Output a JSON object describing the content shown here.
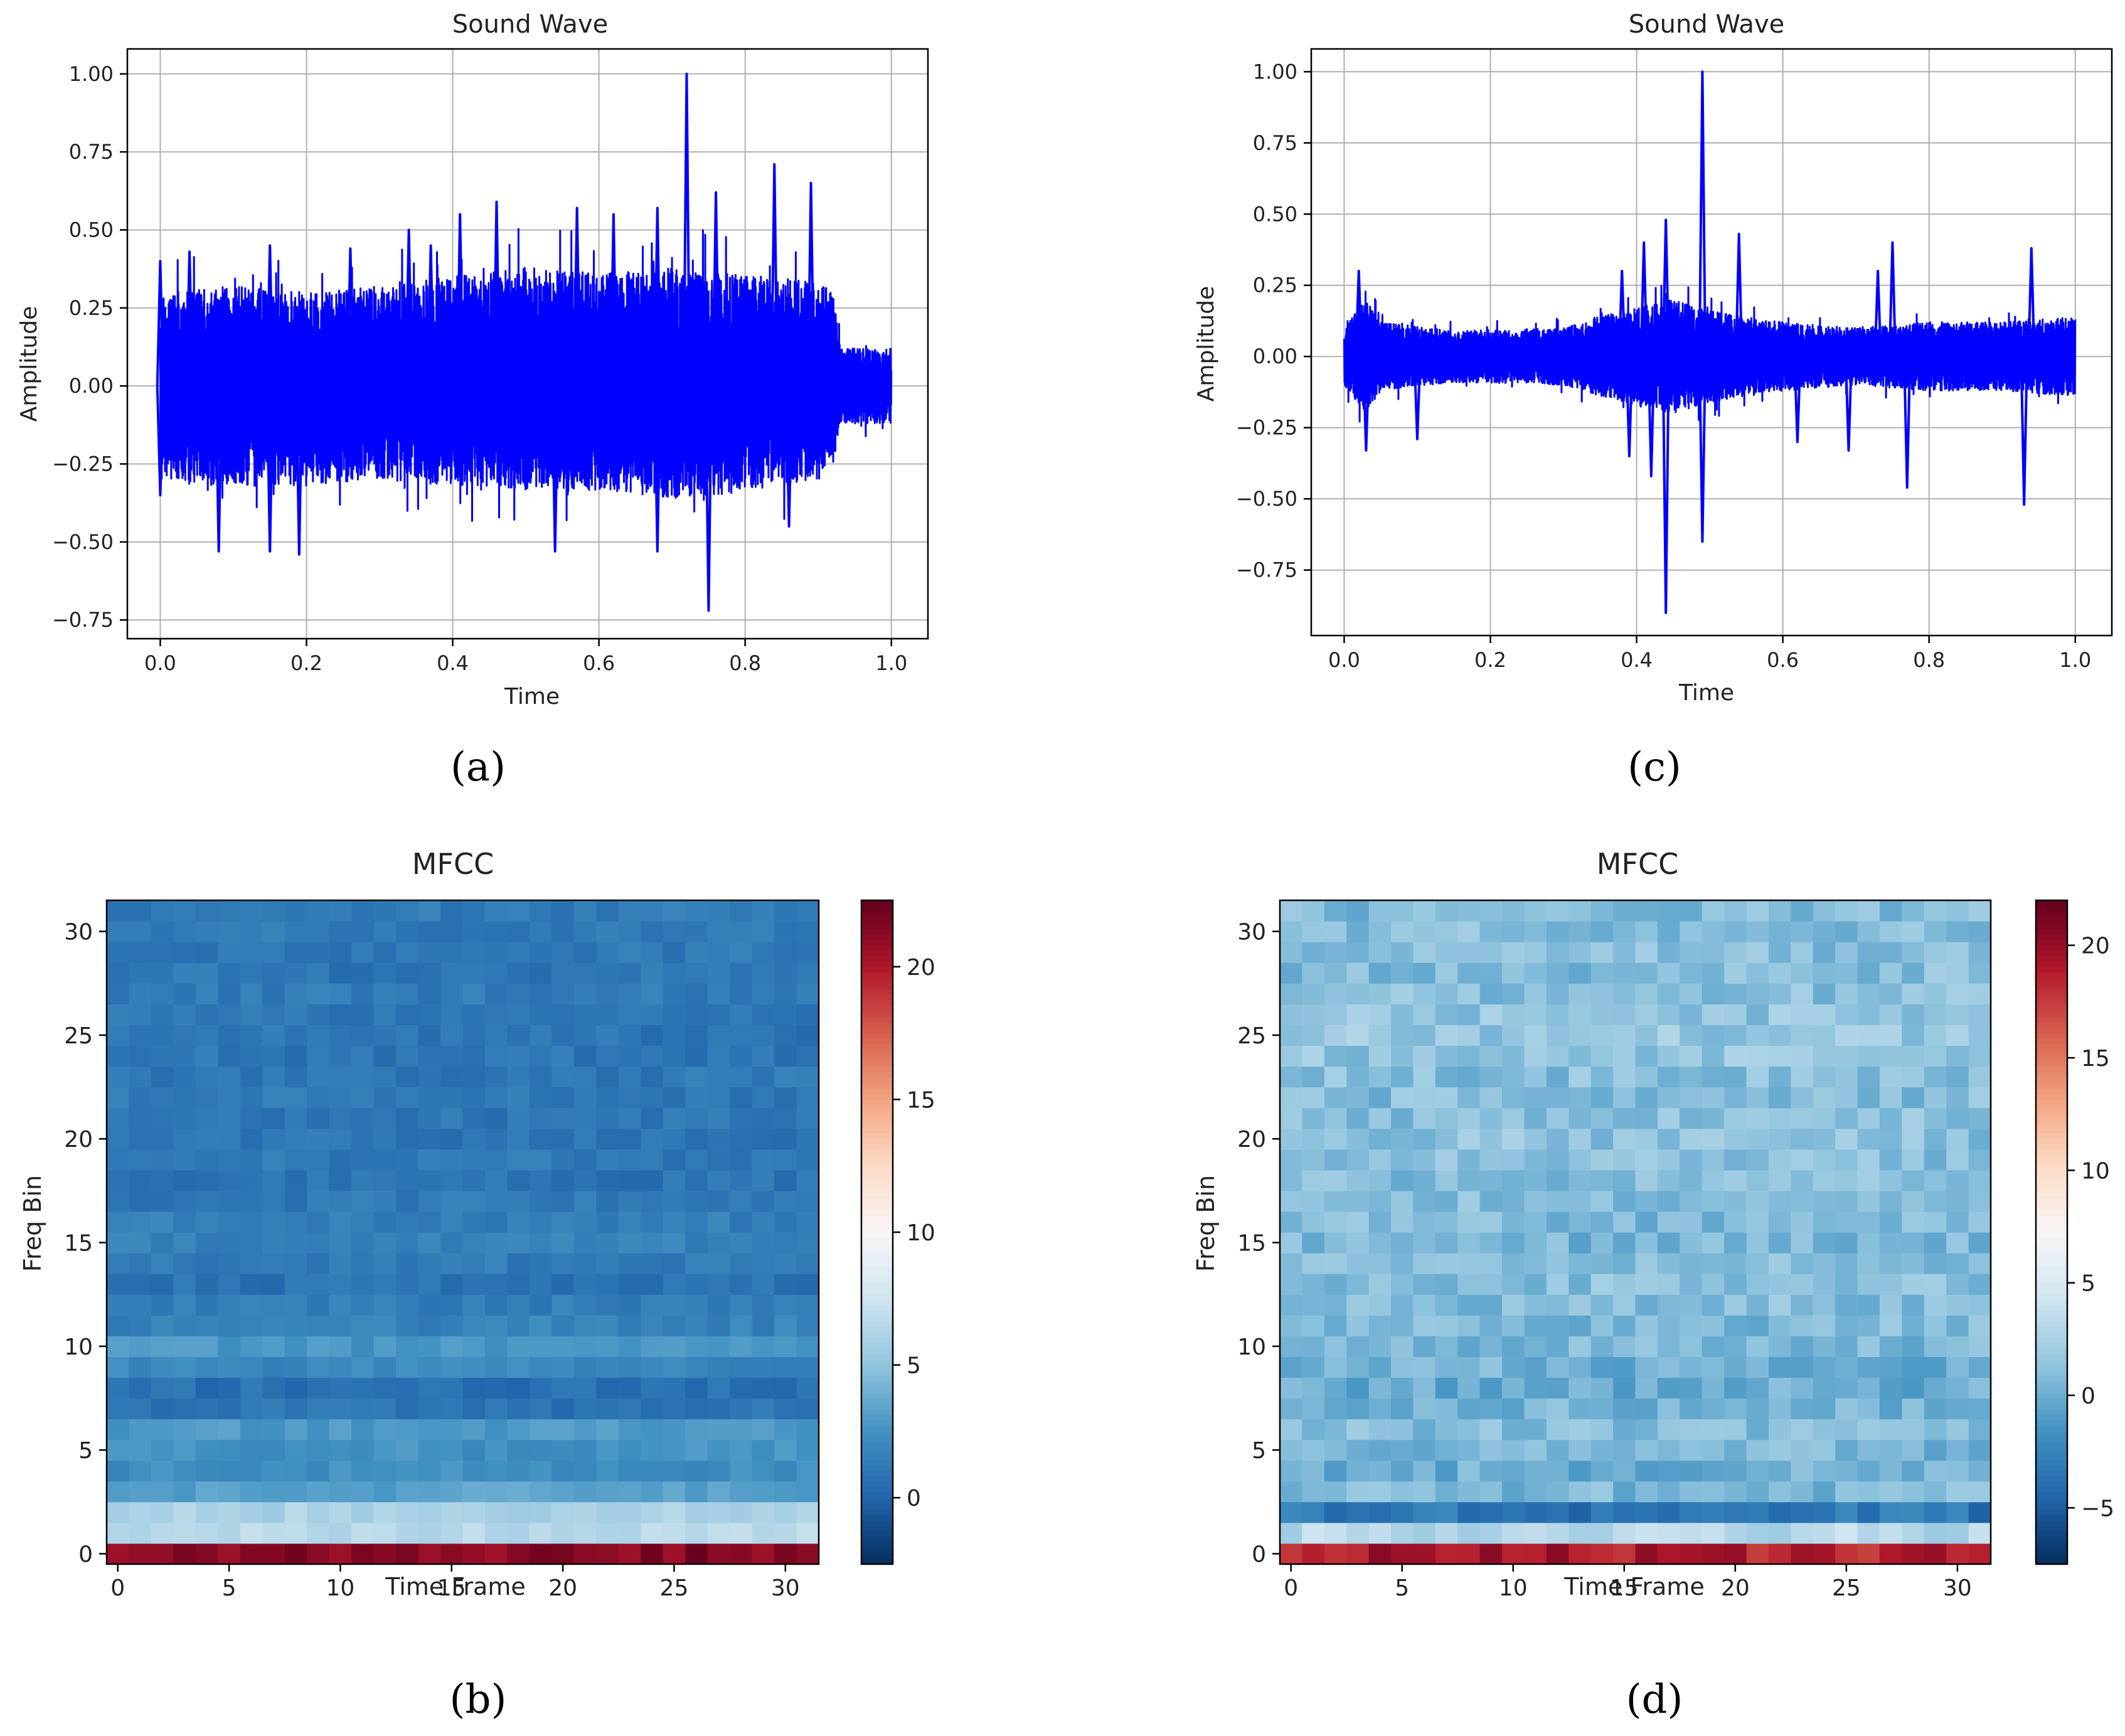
{
  "chart_data": [
    {
      "id": "a",
      "type": "line",
      "title": "Sound Wave",
      "xlabel": "Time",
      "ylabel": "Amplitude",
      "xlim": [
        -0.045,
        1.05
      ],
      "ylim": [
        -0.81,
        1.08
      ],
      "xticks": [
        0.0,
        0.2,
        0.4,
        0.6,
        0.8,
        1.0
      ],
      "xtick_labels": [
        "0.0",
        "0.2",
        "0.4",
        "0.6",
        "0.8",
        "1.0"
      ],
      "yticks": [
        -0.75,
        -0.5,
        -0.25,
        0.0,
        0.25,
        0.5,
        0.75,
        1.0
      ],
      "ytick_labels": [
        "−0.75",
        "−0.50",
        "−0.25",
        "0.00",
        "0.25",
        "0.50",
        "0.75",
        "1.00"
      ],
      "grid": true,
      "series": [
        {
          "name": "waveform",
          "color": "#0000ff",
          "envelope": {
            "x": [
              0.0,
              0.1,
              0.2,
              0.3,
              0.4,
              0.5,
              0.6,
              0.7,
              0.8,
              0.9,
              0.92,
              0.93,
              1.0
            ],
            "upper": [
              0.3,
              0.32,
              0.3,
              0.32,
              0.35,
              0.38,
              0.36,
              0.38,
              0.36,
              0.33,
              0.3,
              0.12,
              0.12
            ],
            "lower": [
              -0.3,
              -0.32,
              -0.32,
              -0.3,
              -0.32,
              -0.34,
              -0.34,
              -0.36,
              -0.34,
              -0.3,
              -0.26,
              -0.12,
              -0.12
            ]
          },
          "peaks": [
            {
              "x": 0.0,
              "y": 0.4
            },
            {
              "x": 0.0,
              "y": -0.35
            },
            {
              "x": 0.04,
              "y": 0.43
            },
            {
              "x": 0.08,
              "y": -0.53
            },
            {
              "x": 0.15,
              "y": 0.45
            },
            {
              "x": 0.15,
              "y": -0.53
            },
            {
              "x": 0.19,
              "y": -0.54
            },
            {
              "x": 0.26,
              "y": 0.44
            },
            {
              "x": 0.34,
              "y": 0.5
            },
            {
              "x": 0.37,
              "y": 0.45
            },
            {
              "x": 0.41,
              "y": 0.55
            },
            {
              "x": 0.46,
              "y": 0.59
            },
            {
              "x": 0.54,
              "y": -0.53
            },
            {
              "x": 0.57,
              "y": 0.57
            },
            {
              "x": 0.62,
              "y": 0.55
            },
            {
              "x": 0.68,
              "y": 0.57
            },
            {
              "x": 0.68,
              "y": -0.53
            },
            {
              "x": 0.72,
              "y": 1.0
            },
            {
              "x": 0.75,
              "y": -0.72
            },
            {
              "x": 0.76,
              "y": 0.62
            },
            {
              "x": 0.84,
              "y": 0.71
            },
            {
              "x": 0.89,
              "y": 0.65
            },
            {
              "x": 0.86,
              "y": -0.45
            }
          ]
        }
      ]
    },
    {
      "id": "c",
      "type": "line",
      "title": "Sound Wave",
      "xlabel": "Time",
      "ylabel": "Amplitude",
      "xlim": [
        -0.045,
        1.05
      ],
      "ylim": [
        -0.98,
        1.08
      ],
      "xticks": [
        0.0,
        0.2,
        0.4,
        0.6,
        0.8,
        1.0
      ],
      "xtick_labels": [
        "0.0",
        "0.2",
        "0.4",
        "0.6",
        "0.8",
        "1.0"
      ],
      "yticks": [
        -0.75,
        -0.5,
        -0.25,
        0.0,
        0.25,
        0.5,
        0.75,
        1.0
      ],
      "ytick_labels": [
        "−0.75",
        "−0.50",
        "−0.25",
        "0.00",
        "0.25",
        "0.50",
        "0.75",
        "1.00"
      ],
      "grid": true,
      "series": [
        {
          "name": "waveform",
          "color": "#0000ff",
          "envelope": {
            "x": [
              0.0,
              0.03,
              0.05,
              0.15,
              0.3,
              0.35,
              0.45,
              0.5,
              0.6,
              0.7,
              0.8,
              0.9,
              1.0
            ],
            "upper": [
              0.1,
              0.2,
              0.12,
              0.09,
              0.1,
              0.14,
              0.2,
              0.16,
              0.12,
              0.1,
              0.12,
              0.12,
              0.14
            ],
            "lower": [
              -0.1,
              -0.2,
              -0.12,
              -0.09,
              -0.1,
              -0.14,
              -0.2,
              -0.16,
              -0.12,
              -0.1,
              -0.12,
              -0.12,
              -0.14
            ]
          },
          "peaks": [
            {
              "x": 0.02,
              "y": 0.3
            },
            {
              "x": 0.03,
              "y": -0.33
            },
            {
              "x": 0.1,
              "y": -0.29
            },
            {
              "x": 0.38,
              "y": 0.3
            },
            {
              "x": 0.39,
              "y": -0.35
            },
            {
              "x": 0.41,
              "y": 0.4
            },
            {
              "x": 0.42,
              "y": -0.42
            },
            {
              "x": 0.44,
              "y": 0.48
            },
            {
              "x": 0.44,
              "y": -0.9
            },
            {
              "x": 0.49,
              "y": 1.0
            },
            {
              "x": 0.49,
              "y": -0.65
            },
            {
              "x": 0.54,
              "y": 0.43
            },
            {
              "x": 0.62,
              "y": -0.3
            },
            {
              "x": 0.69,
              "y": -0.33
            },
            {
              "x": 0.73,
              "y": 0.3
            },
            {
              "x": 0.77,
              "y": -0.46
            },
            {
              "x": 0.75,
              "y": 0.4
            },
            {
              "x": 0.93,
              "y": -0.52
            },
            {
              "x": 0.94,
              "y": 0.38
            }
          ]
        }
      ]
    },
    {
      "id": "b",
      "type": "heatmap",
      "title": "MFCC",
      "xlabel": "Time Frame",
      "ylabel": "Freq Bin",
      "xticks": [
        0,
        5,
        10,
        15,
        20,
        25,
        30
      ],
      "yticks": [
        0,
        5,
        10,
        15,
        20,
        25,
        30
      ],
      "xtick_labels": [
        "0",
        "5",
        "10",
        "15",
        "20",
        "25",
        "30"
      ],
      "ytick_labels": [
        "0",
        "5",
        "10",
        "15",
        "20",
        "25",
        "30"
      ],
      "n_frames": 32,
      "n_bins": 32,
      "colormap": "RdBu_r",
      "vmin": -2.5,
      "vmax": 22.5,
      "colorbar_ticks": [
        0,
        5,
        10,
        15,
        20
      ],
      "colorbar_tick_labels": [
        "0",
        "5",
        "10",
        "15",
        "20"
      ],
      "row_means": [
        21.5,
        6.5,
        6.0,
        3.2,
        2.2,
        2.4,
        2.8,
        0.8,
        0.6,
        1.8,
        2.6,
        1.6,
        1.4,
        0.7,
        1.2,
        1.6,
        1.4,
        1.0,
        0.8,
        1.0,
        0.8,
        0.9,
        1.0,
        1.0,
        0.9,
        0.8,
        1.0,
        1.1,
        0.9,
        1.0,
        1.2,
        1.1
      ],
      "noise_amplitude": 0.6
    },
    {
      "id": "d",
      "type": "heatmap",
      "title": "MFCC",
      "xlabel": "Time Frame",
      "ylabel": "Freq Bin",
      "xticks": [
        0,
        5,
        10,
        15,
        20,
        25,
        30
      ],
      "yticks": [
        0,
        5,
        10,
        15,
        20,
        25,
        30
      ],
      "xtick_labels": [
        "0",
        "5",
        "10",
        "15",
        "20",
        "25",
        "30"
      ],
      "ytick_labels": [
        "0",
        "5",
        "10",
        "15",
        "20",
        "25",
        "30"
      ],
      "n_frames": 32,
      "n_bins": 32,
      "colormap": "RdBu_r",
      "vmin": -7.5,
      "vmax": 22,
      "colorbar_ticks": [
        -5,
        0,
        5,
        10,
        15,
        20
      ],
      "colorbar_tick_labels": [
        "−5",
        "0",
        "5",
        "10",
        "15",
        "20"
      ],
      "row_means": [
        19.0,
        3.0,
        -3.5,
        0.5,
        0.0,
        0.5,
        0.8,
        0.2,
        -0.2,
        0.0,
        0.3,
        0.6,
        0.8,
        1.0,
        0.8,
        0.4,
        0.6,
        0.8,
        0.9,
        1.0,
        1.2,
        1.1,
        0.8,
        1.0,
        1.4,
        1.6,
        1.4,
        1.1,
        0.8,
        0.9,
        0.8,
        0.7
      ],
      "noise_amplitude": 1.3
    }
  ],
  "figure_labels": [
    "(a)",
    "(c)",
    "(b)",
    "(d)"
  ]
}
